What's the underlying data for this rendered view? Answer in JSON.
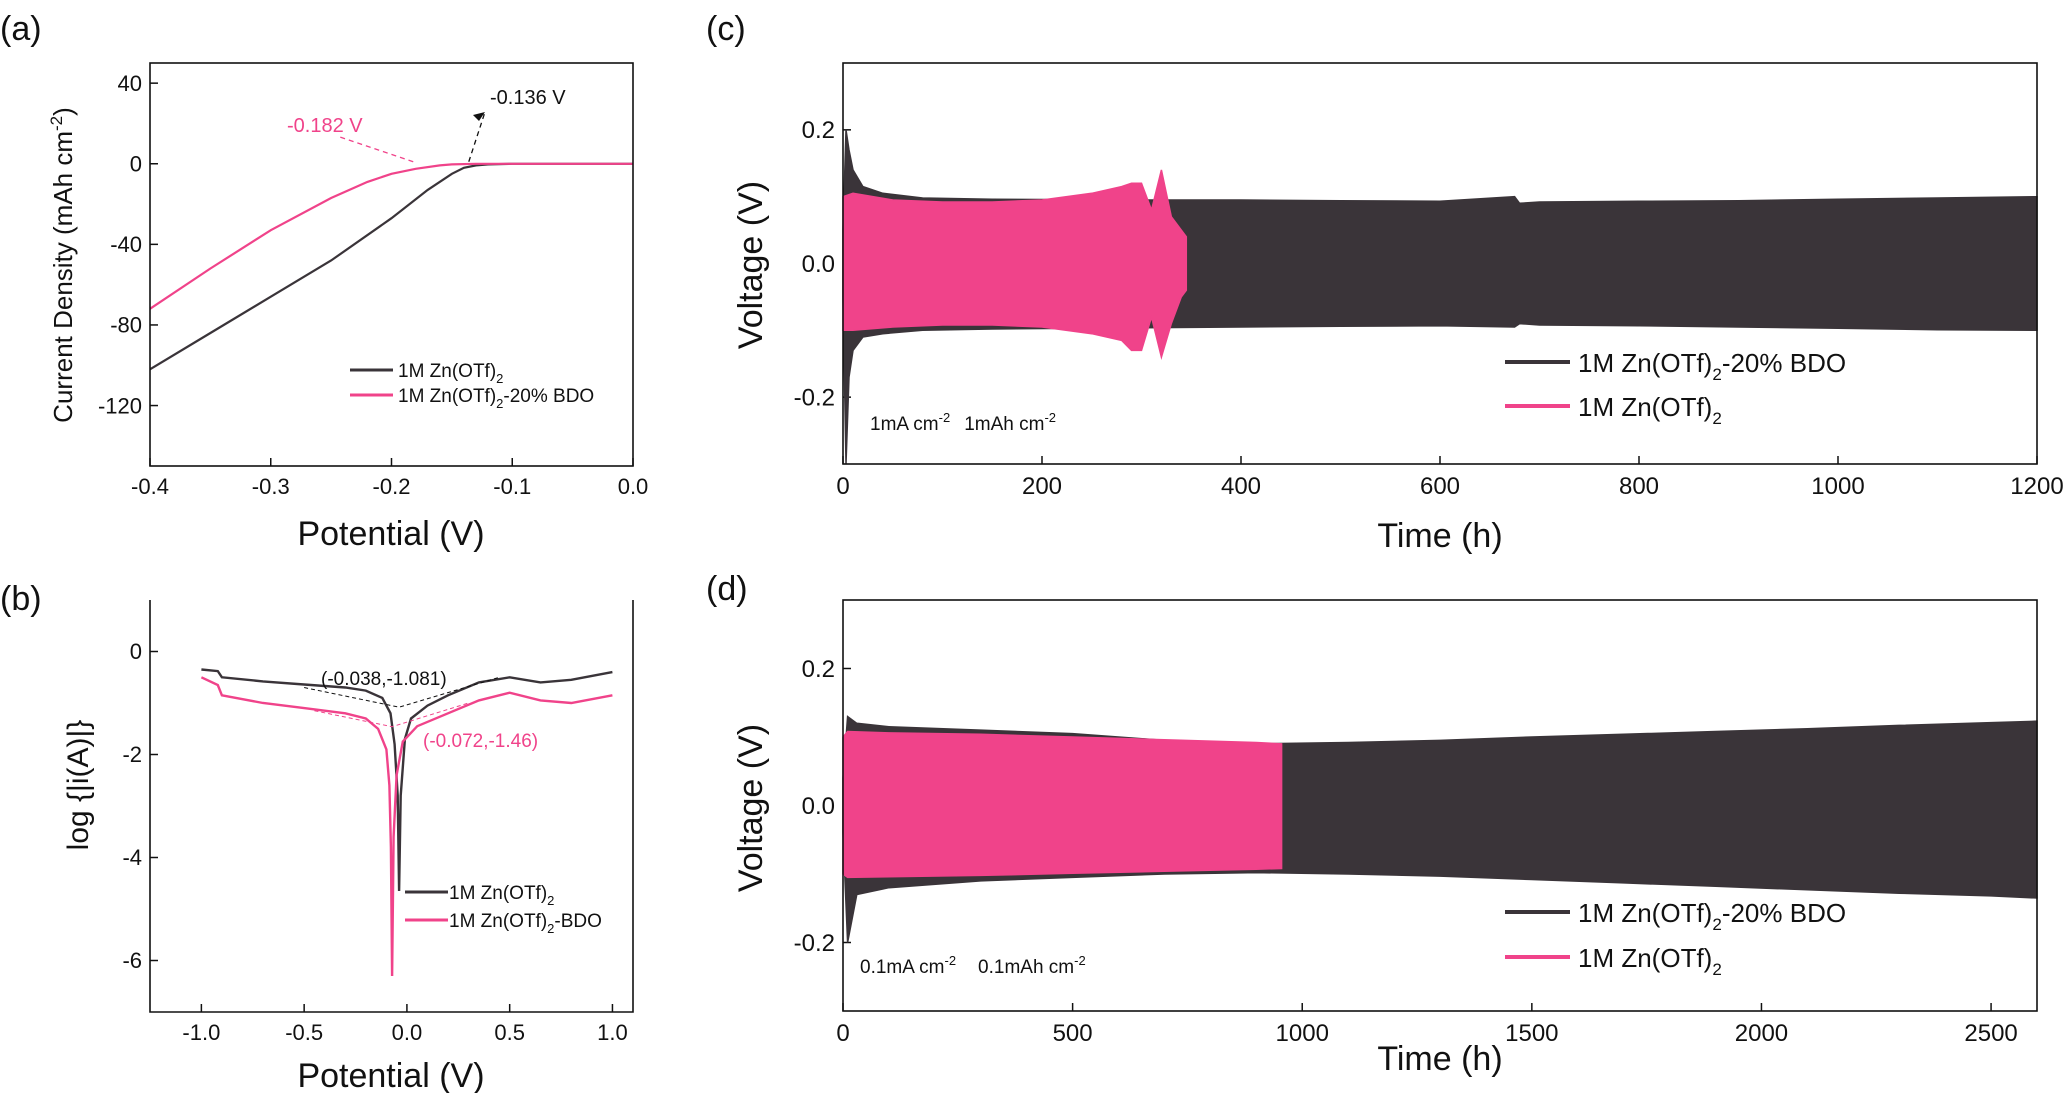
{
  "colors": {
    "black_series": "#3a3439",
    "pink_series": "#f0438a",
    "axis": "#111111"
  },
  "chart_data": [
    {
      "panel": "(a)",
      "type": "line",
      "xlabel": "Potential (V)",
      "ylabel": "Current Density (mAh cm",
      "ylabel_sup": "-2",
      "ylabel_end": ")",
      "xlim": [
        -0.4,
        0.0
      ],
      "ylim": [
        -150,
        50
      ],
      "xticks": [
        -0.4,
        -0.3,
        -0.2,
        -0.1,
        0.0
      ],
      "xtick_labels": [
        "-0.4",
        "-0.3",
        "-0.2",
        "-0.1",
        "0.0"
      ],
      "yticks": [
        40,
        0,
        -40,
        -80,
        -120
      ],
      "ytick_labels": [
        "40",
        "0",
        "-40",
        "-80",
        "-120"
      ],
      "series": [
        {
          "name": "1M Zn(OTf)",
          "name_sub": "2",
          "name_end": "",
          "color": "#3a3439",
          "x": [
            -0.4,
            -0.35,
            -0.3,
            -0.25,
            -0.2,
            -0.17,
            -0.15,
            -0.14,
            -0.13,
            -0.12,
            -0.1,
            -0.05,
            0.0
          ],
          "y": [
            -102,
            -84,
            -66,
            -48,
            -27,
            -13,
            -5,
            -2,
            -0.8,
            -0.3,
            0,
            0,
            0
          ]
        },
        {
          "name": "1M Zn(OTf)",
          "name_sub": "2",
          "name_end": "-20% BDO",
          "color": "#f0438a",
          "x": [
            -0.4,
            -0.35,
            -0.3,
            -0.25,
            -0.22,
            -0.2,
            -0.18,
            -0.16,
            -0.15,
            -0.13,
            -0.1,
            -0.05,
            0.0
          ],
          "y": [
            -72,
            -52,
            -33,
            -17,
            -9,
            -5,
            -2.5,
            -0.8,
            -0.3,
            0,
            0,
            0,
            0
          ]
        }
      ],
      "annotations": [
        {
          "text": "-0.136 V",
          "color": "#111111",
          "x": -0.136,
          "y": 0
        },
        {
          "text": "-0.182 V",
          "color": "#f0438a",
          "x": -0.182,
          "y": 0
        }
      ]
    },
    {
      "panel": "(b)",
      "type": "line",
      "xlabel": "Potential (V)",
      "ylabel": "log {|i(A)|}",
      "xlim": [
        -1.25,
        1.1
      ],
      "ylim": [
        -7,
        1
      ],
      "xticks": [
        -1.0,
        -0.5,
        0.0,
        0.5,
        1.0
      ],
      "xtick_labels": [
        "-1.0",
        "-0.5",
        "0.0",
        "0.5",
        "1.0"
      ],
      "yticks": [
        0,
        -2,
        -4,
        -6
      ],
      "ytick_labels": [
        "0",
        "-2",
        "-4",
        "-6"
      ],
      "series": [
        {
          "name": "1M Zn(OTf)",
          "name_sub": "2",
          "name_end": "",
          "color": "#3a3439",
          "x": [
            -1.0,
            -0.92,
            -0.9,
            -0.7,
            -0.5,
            -0.3,
            -0.2,
            -0.12,
            -0.08,
            -0.06,
            -0.045,
            -0.038,
            -0.03,
            -0.01,
            0.02,
            0.1,
            0.2,
            0.35,
            0.5,
            0.65,
            0.8,
            1.0
          ],
          "y": [
            -0.35,
            -0.38,
            -0.5,
            -0.58,
            -0.64,
            -0.7,
            -0.76,
            -0.9,
            -1.2,
            -1.8,
            -2.8,
            -4.65,
            -2.8,
            -1.7,
            -1.3,
            -1.05,
            -0.85,
            -0.6,
            -0.5,
            -0.6,
            -0.55,
            -0.4
          ]
        },
        {
          "name": "1M Zn(OTf)",
          "name_sub": "2",
          "name_end": "-BDO",
          "color": "#f0438a",
          "x": [
            -1.0,
            -0.92,
            -0.9,
            -0.7,
            -0.5,
            -0.3,
            -0.2,
            -0.14,
            -0.1,
            -0.085,
            -0.078,
            -0.072,
            -0.065,
            -0.05,
            -0.02,
            0.05,
            0.2,
            0.35,
            0.5,
            0.65,
            0.8,
            1.0
          ],
          "y": [
            -0.5,
            -0.65,
            -0.85,
            -1.0,
            -1.1,
            -1.2,
            -1.3,
            -1.5,
            -1.9,
            -2.6,
            -3.8,
            -6.3,
            -3.6,
            -2.4,
            -1.75,
            -1.45,
            -1.2,
            -0.95,
            -0.8,
            -0.95,
            -1.0,
            -0.85
          ]
        }
      ],
      "annotations": [
        {
          "text": "(-0.038,-1.081)",
          "color": "#111111",
          "x": -0.038,
          "y": -1.081
        },
        {
          "text": "(-0.072,-1.46)",
          "color": "#f0438a",
          "x": -0.072,
          "y": -1.46
        }
      ]
    },
    {
      "panel": "(c)",
      "type": "area",
      "xlabel": "Time (h)",
      "ylabel": "Voltage (V)",
      "xlim": [
        0,
        1200
      ],
      "ylim": [
        -0.3,
        0.3
      ],
      "xticks": [
        0,
        200,
        400,
        600,
        800,
        1000,
        1200
      ],
      "xtick_labels": [
        "0",
        "200",
        "400",
        "600",
        "800",
        "1000",
        "1200"
      ],
      "yticks": [
        0.2,
        0.0,
        -0.2
      ],
      "ytick_labels": [
        "0.2",
        "0.0",
        "-0.2"
      ],
      "condition_1": "1mA cm",
      "condition_1_sup": "-2",
      "condition_2": "1mAh cm",
      "condition_2_sup": "-2",
      "series": [
        {
          "name": "1M Zn(OTf)",
          "name_sub": "2",
          "name_end": "-20% BDO",
          "color": "#3a3439",
          "x": [
            0,
            3,
            6,
            10,
            20,
            40,
            80,
            150,
            300,
            400,
            500,
            600,
            675,
            680,
            700,
            800,
            900,
            1000,
            1100,
            1200
          ],
          "upper": [
            0.05,
            0.2,
            0.17,
            0.14,
            0.115,
            0.105,
            0.098,
            0.096,
            0.095,
            0.095,
            0.094,
            0.093,
            0.1,
            0.09,
            0.092,
            0.093,
            0.094,
            0.096,
            0.098,
            0.1
          ],
          "lower": [
            -0.05,
            -0.3,
            -0.17,
            -0.13,
            -0.11,
            -0.105,
            -0.1,
            -0.098,
            -0.096,
            -0.095,
            -0.094,
            -0.093,
            -0.095,
            -0.09,
            -0.092,
            -0.093,
            -0.095,
            -0.097,
            -0.099,
            -0.1
          ]
        },
        {
          "name": "1M Zn(OTf)",
          "name_sub": "2",
          "name_end": "",
          "color": "#f0438a",
          "x": [
            0,
            10,
            50,
            100,
            150,
            200,
            250,
            280,
            290,
            300,
            310,
            320,
            330,
            340,
            345
          ],
          "upper": [
            0.1,
            0.105,
            0.095,
            0.092,
            0.092,
            0.095,
            0.105,
            0.115,
            0.12,
            0.12,
            0.08,
            0.14,
            0.07,
            0.05,
            0.04
          ],
          "lower": [
            -0.1,
            -0.1,
            -0.095,
            -0.092,
            -0.092,
            -0.095,
            -0.105,
            -0.115,
            -0.13,
            -0.13,
            -0.08,
            -0.14,
            -0.09,
            -0.05,
            -0.04
          ]
        }
      ]
    },
    {
      "panel": "(d)",
      "type": "area",
      "xlabel": "Time (h)",
      "ylabel": "Voltage (V)",
      "xlim": [
        0,
        2600
      ],
      "ylim": [
        -0.3,
        0.3
      ],
      "xticks": [
        0,
        500,
        1000,
        1500,
        2000,
        2500
      ],
      "xtick_labels": [
        "0",
        "500",
        "1000",
        "1500",
        "2000",
        "2500"
      ],
      "yticks": [
        0.2,
        0.0,
        -0.2
      ],
      "ytick_labels": [
        "0.2",
        "0.0",
        "-0.2"
      ],
      "condition_1": "0.1mA cm",
      "condition_1_sup": "-2",
      "condition_2": "0.1mAh cm",
      "condition_2_sup": "-2",
      "series": [
        {
          "name": "1M Zn(OTf)",
          "name_sub": "2",
          "name_end": "-20% BDO",
          "color": "#3a3439",
          "x": [
            0,
            10,
            30,
            100,
            300,
            500,
            700,
            900,
            1100,
            1300,
            1500,
            1700,
            1900,
            2100,
            2300,
            2500,
            2600
          ],
          "upper": [
            0.04,
            0.13,
            0.12,
            0.115,
            0.11,
            0.105,
            0.095,
            0.09,
            0.092,
            0.095,
            0.1,
            0.104,
            0.108,
            0.112,
            0.117,
            0.121,
            0.123
          ],
          "lower": [
            -0.04,
            -0.2,
            -0.13,
            -0.12,
            -0.11,
            -0.105,
            -0.1,
            -0.098,
            -0.1,
            -0.103,
            -0.108,
            -0.113,
            -0.118,
            -0.123,
            -0.128,
            -0.132,
            -0.135
          ]
        },
        {
          "name": "1M Zn(OTf)",
          "name_sub": "2",
          "name_end": "",
          "color": "#f0438a",
          "x": [
            0,
            10,
            100,
            300,
            500,
            700,
            900,
            955
          ],
          "upper": [
            0.1,
            0.108,
            0.106,
            0.104,
            0.1,
            0.096,
            0.092,
            0.09
          ],
          "lower": [
            -0.1,
            -0.105,
            -0.104,
            -0.102,
            -0.099,
            -0.096,
            -0.093,
            -0.092
          ]
        }
      ]
    }
  ]
}
